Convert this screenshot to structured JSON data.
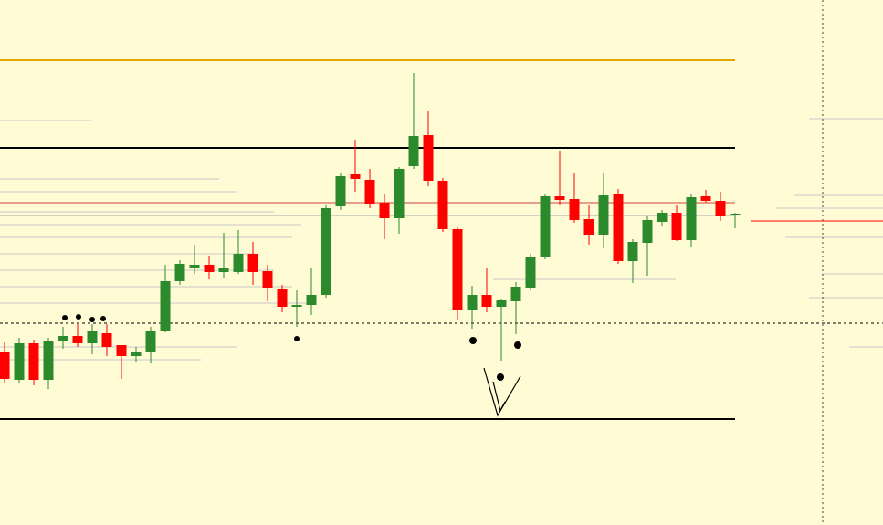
{
  "chart_data": {
    "type": "candlestick",
    "ylim": [
      0,
      575
    ],
    "up_color": "#2b8a2b",
    "down_color": "#ff0000",
    "open": [
      190,
      159,
      199,
      159,
      202,
      207,
      199,
      210,
      197,
      185,
      189,
      213,
      267,
      281,
      285,
      277,
      277,
      297,
      278,
      259,
      239,
      241,
      252,
      349,
      384,
      378,
      353,
      336,
      393,
      427,
      377,
      324,
      235,
      252,
      239,
      245,
      260,
      293,
      360,
      357,
      335,
      318,
      362,
      289,
      309,
      332,
      342,
      312,
      360,
      355,
      339
    ],
    "high": [
      200,
      205,
      203,
      205,
      217,
      220,
      220,
      220,
      197,
      195,
      217,
      285,
      290,
      307,
      295,
      320,
      323,
      310,
      285,
      263,
      257,
      282,
      350,
      385,
      422,
      390,
      363,
      392,
      495,
      453,
      380,
      326,
      262,
      281,
      248,
      266,
      297,
      362,
      410,
      385,
      350,
      385,
      368,
      313,
      338,
      345,
      351,
      363,
      367,
      365,
      342
    ],
    "low": [
      155,
      155,
      153,
      149,
      193,
      195,
      187,
      185,
      160,
      179,
      177,
      211,
      263,
      275,
      269,
      271,
      275,
      263,
      245,
      233,
      217,
      230,
      249,
      345,
      365,
      347,
      313,
      319,
      390,
      371,
      321,
      225,
      215,
      233,
      180,
      209,
      257,
      291,
      350,
      331,
      307,
      303,
      286,
      265,
      273,
      327,
      311,
      305,
      353,
      333,
      325
    ],
    "close": [
      160,
      199,
      159,
      201,
      207,
      199,
      212,
      195,
      185,
      190,
      213,
      267,
      286,
      285,
      277,
      281,
      297,
      277,
      260,
      239,
      241,
      252,
      347,
      382,
      379,
      352,
      336,
      390,
      426,
      377,
      324,
      235,
      252,
      239,
      246,
      261,
      294,
      360,
      356,
      334,
      318,
      361,
      289,
      310,
      334,
      342,
      312,
      359,
      355,
      338,
      341
    ],
    "levels": [
      {
        "value": 509,
        "color": "#e8a400"
      },
      {
        "value": 413,
        "color": "#000000"
      },
      {
        "value": 353,
        "color": "#d04040"
      },
      {
        "value": 339,
        "color": "#a0a8b0"
      },
      {
        "value": 221,
        "color": "#000000",
        "dashed": true
      },
      {
        "value": 116,
        "color": "#000000"
      }
    ]
  }
}
